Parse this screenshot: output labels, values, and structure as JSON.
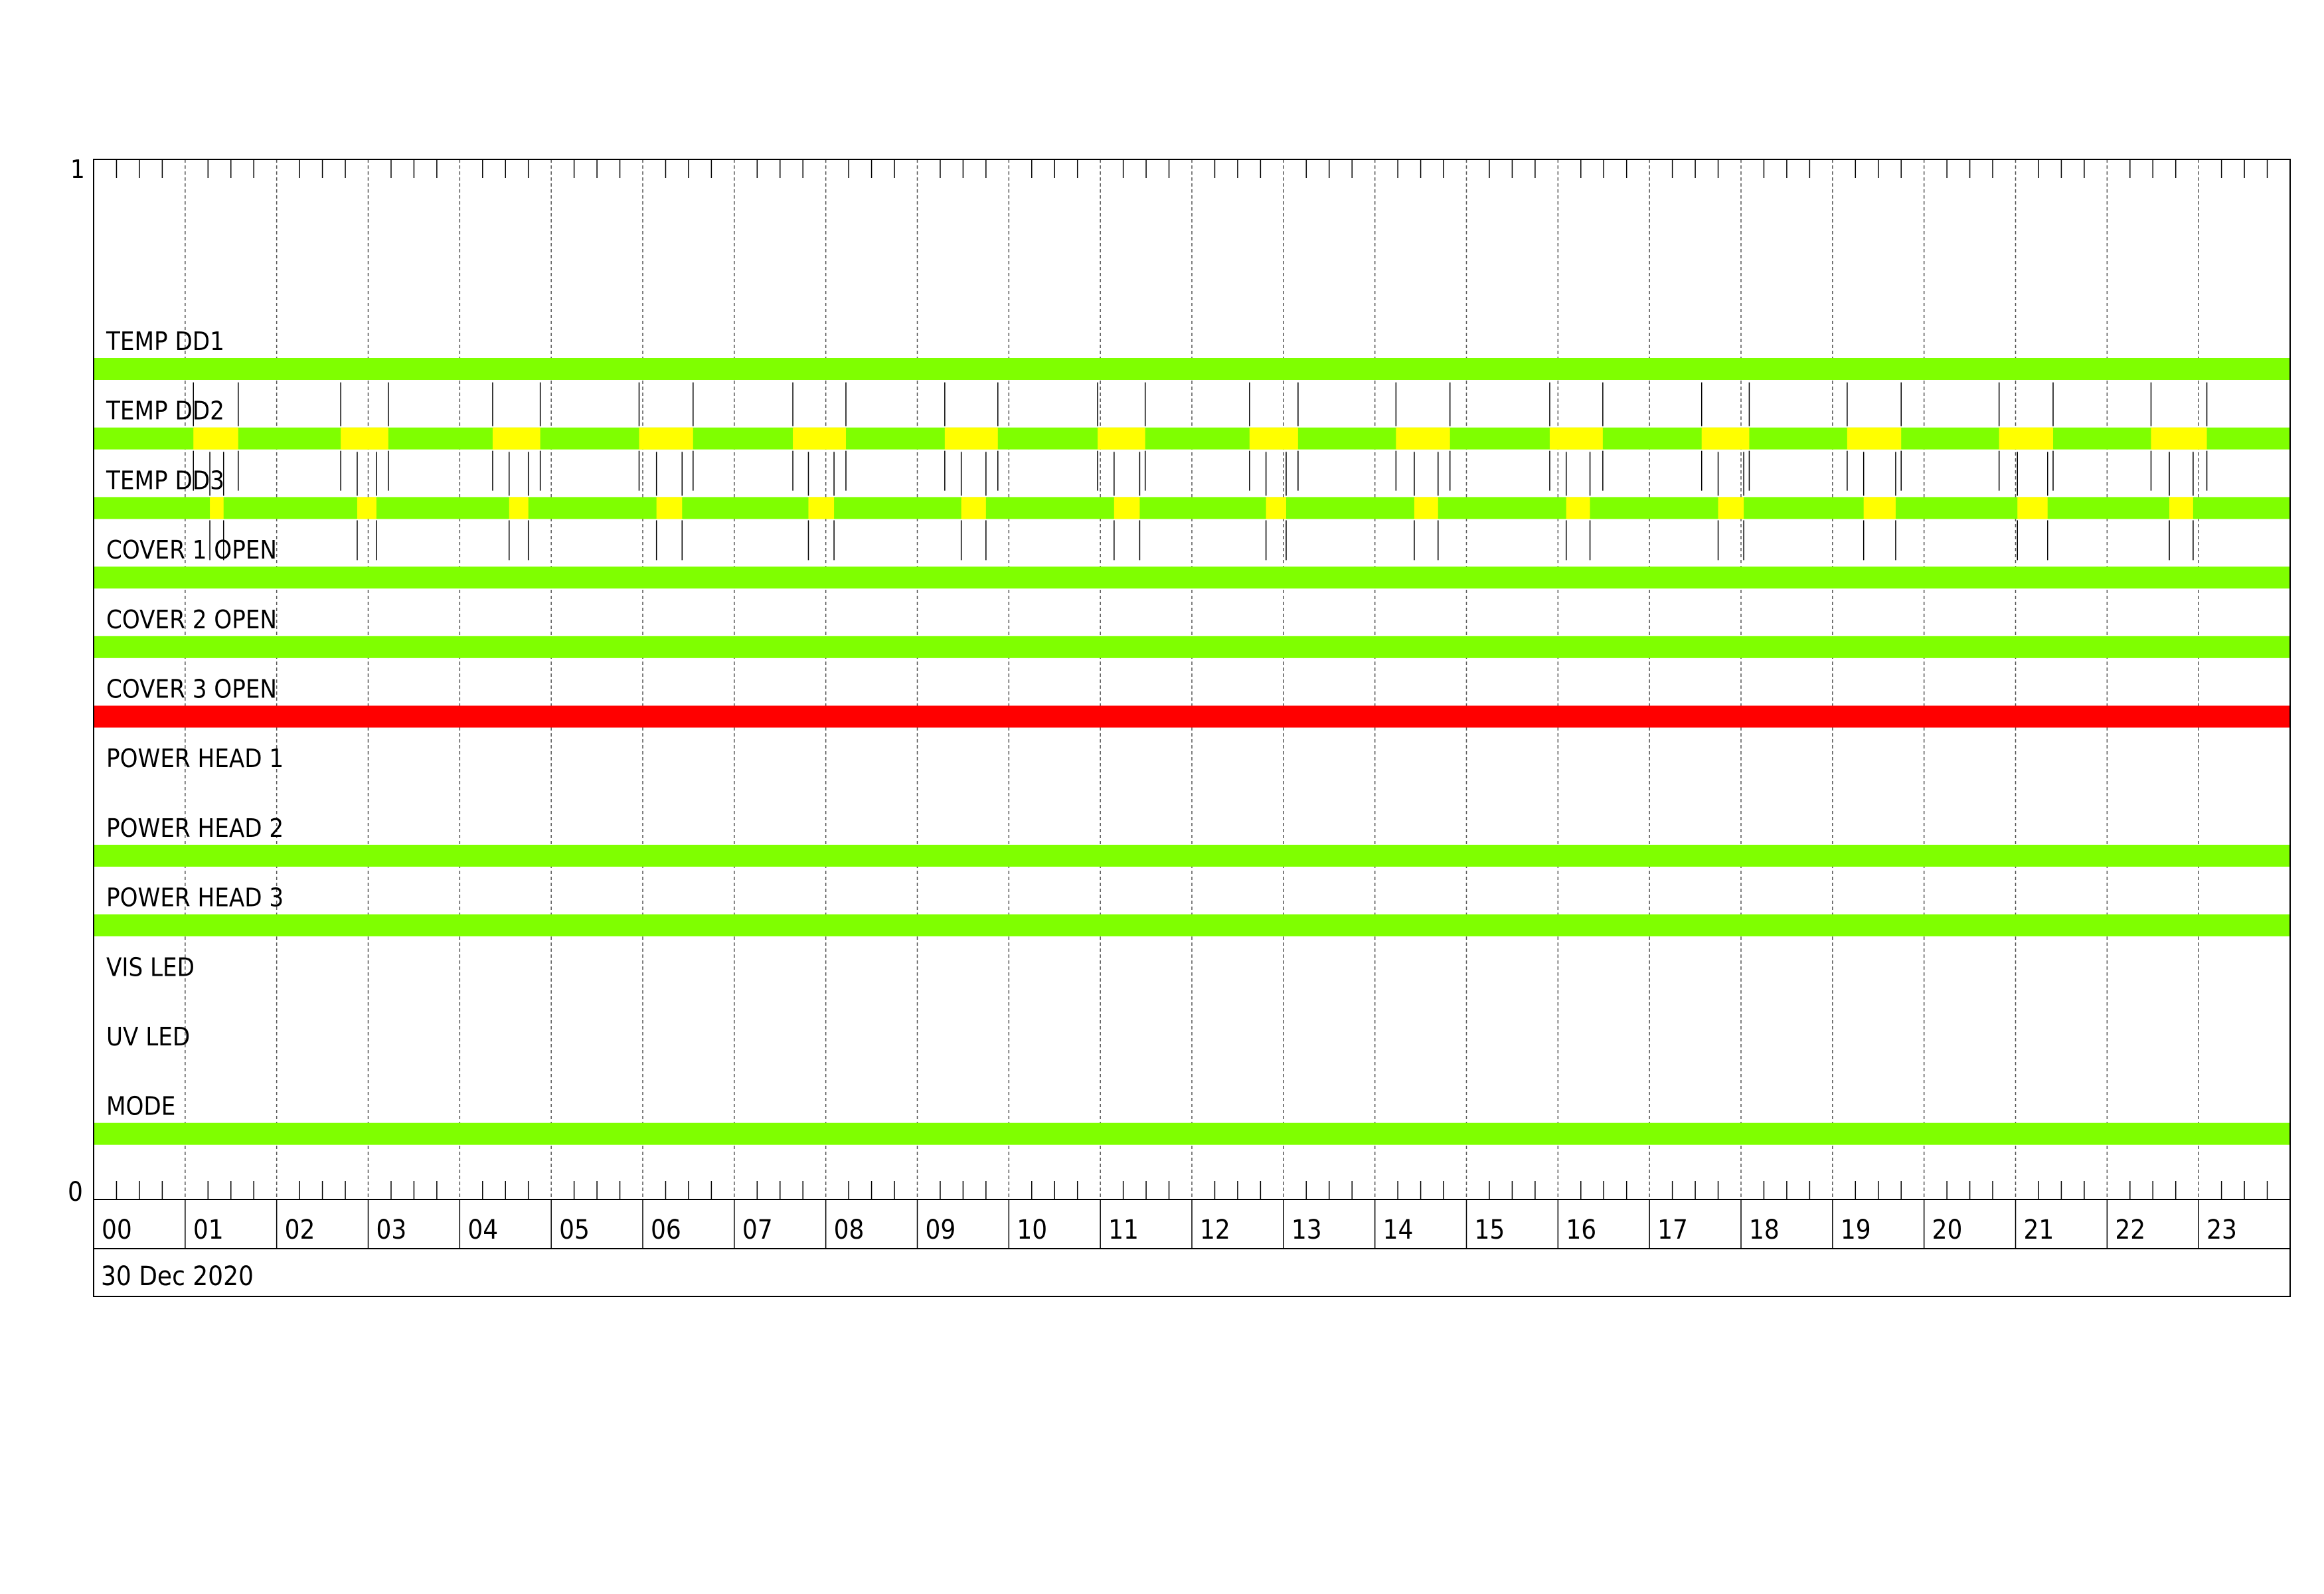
{
  "chart_data": {
    "type": "timeline",
    "y_axis": {
      "top_label": "1",
      "bottom_label": "0"
    },
    "x_axis": {
      "unit": "hour",
      "range": [
        0,
        24
      ],
      "tick_labels": [
        "00",
        "01",
        "02",
        "03",
        "04",
        "05",
        "06",
        "07",
        "08",
        "09",
        "10",
        "11",
        "12",
        "13",
        "14",
        "15",
        "16",
        "17",
        "18",
        "19",
        "20",
        "21",
        "22",
        "23"
      ],
      "minor_ticks_per_hour": 4,
      "date_label": "30 Dec 2020"
    },
    "grid": "dashed hourly vertical lines",
    "colors": {
      "ok": "#7fff00",
      "warning": "#ffff00",
      "alarm": "#ff0000"
    },
    "series": [
      {
        "name": "TEMP DD1",
        "base": "ok",
        "segments": []
      },
      {
        "name": "TEMP DD2",
        "base": "ok",
        "segments": [
          {
            "start": 1.09,
            "end": 1.58,
            "state": "warning"
          },
          {
            "start": 2.7,
            "end": 3.22,
            "state": "warning"
          },
          {
            "start": 4.36,
            "end": 4.88,
            "state": "warning"
          },
          {
            "start": 5.96,
            "end": 6.55,
            "state": "warning"
          },
          {
            "start": 7.64,
            "end": 8.22,
            "state": "warning"
          },
          {
            "start": 9.3,
            "end": 9.88,
            "state": "warning"
          },
          {
            "start": 10.97,
            "end": 11.49,
            "state": "warning"
          },
          {
            "start": 12.63,
            "end": 13.16,
            "state": "warning"
          },
          {
            "start": 14.23,
            "end": 14.82,
            "state": "warning"
          },
          {
            "start": 15.91,
            "end": 16.49,
            "state": "warning"
          },
          {
            "start": 17.57,
            "end": 18.09,
            "state": "warning"
          },
          {
            "start": 19.16,
            "end": 19.75,
            "state": "warning"
          },
          {
            "start": 20.82,
            "end": 21.41,
            "state": "warning"
          },
          {
            "start": 22.48,
            "end": 23.09,
            "state": "warning"
          }
        ]
      },
      {
        "name": "TEMP DD3",
        "base": "ok",
        "segments": [
          {
            "start": 1.27,
            "end": 1.42,
            "state": "warning"
          },
          {
            "start": 2.88,
            "end": 3.09,
            "state": "warning"
          },
          {
            "start": 4.54,
            "end": 4.75,
            "state": "warning"
          },
          {
            "start": 6.15,
            "end": 6.43,
            "state": "warning"
          },
          {
            "start": 7.81,
            "end": 8.09,
            "state": "warning"
          },
          {
            "start": 9.48,
            "end": 9.75,
            "state": "warning"
          },
          {
            "start": 11.15,
            "end": 11.43,
            "state": "warning"
          },
          {
            "start": 12.81,
            "end": 13.03,
            "state": "warning"
          },
          {
            "start": 14.43,
            "end": 14.69,
            "state": "warning"
          },
          {
            "start": 16.09,
            "end": 16.35,
            "state": "warning"
          },
          {
            "start": 17.75,
            "end": 18.03,
            "state": "warning"
          },
          {
            "start": 19.34,
            "end": 19.69,
            "state": "warning"
          },
          {
            "start": 21.02,
            "end": 21.35,
            "state": "warning"
          },
          {
            "start": 22.68,
            "end": 22.94,
            "state": "warning"
          }
        ]
      },
      {
        "name": "COVER 1 OPEN",
        "base": "ok",
        "segments": []
      },
      {
        "name": "COVER 2 OPEN",
        "base": "ok",
        "segments": []
      },
      {
        "name": "COVER 3 OPEN",
        "base": "alarm",
        "segments": []
      },
      {
        "name": "POWER HEAD 1",
        "base": null,
        "segments": []
      },
      {
        "name": "POWER HEAD 2",
        "base": "ok",
        "segments": []
      },
      {
        "name": "POWER HEAD 3",
        "base": "ok",
        "segments": []
      },
      {
        "name": "VIS LED",
        "base": null,
        "segments": []
      },
      {
        "name": "UV LED",
        "base": null,
        "segments": []
      },
      {
        "name": "MODE",
        "base": "ok",
        "segments": []
      }
    ]
  }
}
